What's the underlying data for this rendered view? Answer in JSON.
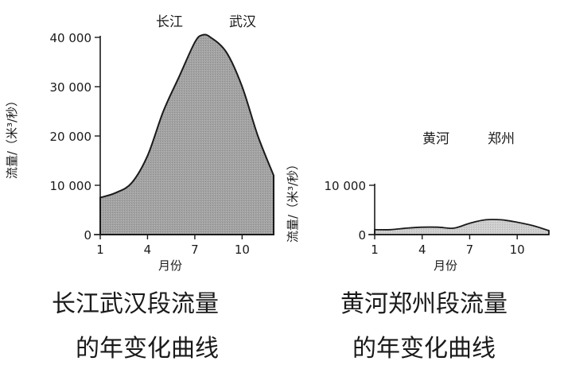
{
  "chart_data": [
    {
      "type": "area",
      "title": "长江武汉段流量的年变化曲线",
      "station": {
        "river": "长江",
        "city": "武汉"
      },
      "xlabel": "月份",
      "ylabel": "流量/（米³/秒）",
      "x_ticks": [
        1,
        4,
        7,
        10
      ],
      "y_ticks": [
        0,
        10000,
        20000,
        30000,
        40000
      ],
      "y_tick_labels": [
        "0",
        "10 000",
        "20 000",
        "30 000",
        "40 000"
      ],
      "xlim": [
        1,
        12
      ],
      "ylim": [
        0,
        40000
      ],
      "x": [
        1,
        2,
        3,
        4,
        5,
        6,
        7,
        7.5,
        8,
        9,
        10,
        11,
        12
      ],
      "values": [
        7500,
        8500,
        10500,
        16000,
        25000,
        32000,
        39000,
        40500,
        40000,
        37000,
        30000,
        20000,
        12000
      ],
      "fill_color": "#a8a8a8",
      "grid": false
    },
    {
      "type": "area",
      "title": "黄河郑州段流量的年变化曲线",
      "station": {
        "river": "黄河",
        "city": "郑州"
      },
      "xlabel": "月份",
      "ylabel": "流量/（米³/秒）",
      "x_ticks": [
        1,
        4,
        7,
        10
      ],
      "y_ticks": [
        0,
        10000
      ],
      "y_tick_labels": [
        "0",
        "10 000"
      ],
      "xlim": [
        1,
        12
      ],
      "ylim": [
        0,
        10000
      ],
      "x": [
        1,
        2,
        3,
        4,
        5,
        6,
        7,
        8,
        9,
        10,
        11,
        12
      ],
      "values": [
        1000,
        1000,
        1300,
        1500,
        1500,
        1300,
        2300,
        3000,
        3000,
        2500,
        1800,
        800
      ],
      "fill_color": "#cfcfcf",
      "grid": false
    }
  ],
  "captions": [
    [
      "长江武汉段流量",
      "的年变化曲线"
    ],
    [
      "黄河郑州段流量",
      "的年变化曲线"
    ]
  ]
}
